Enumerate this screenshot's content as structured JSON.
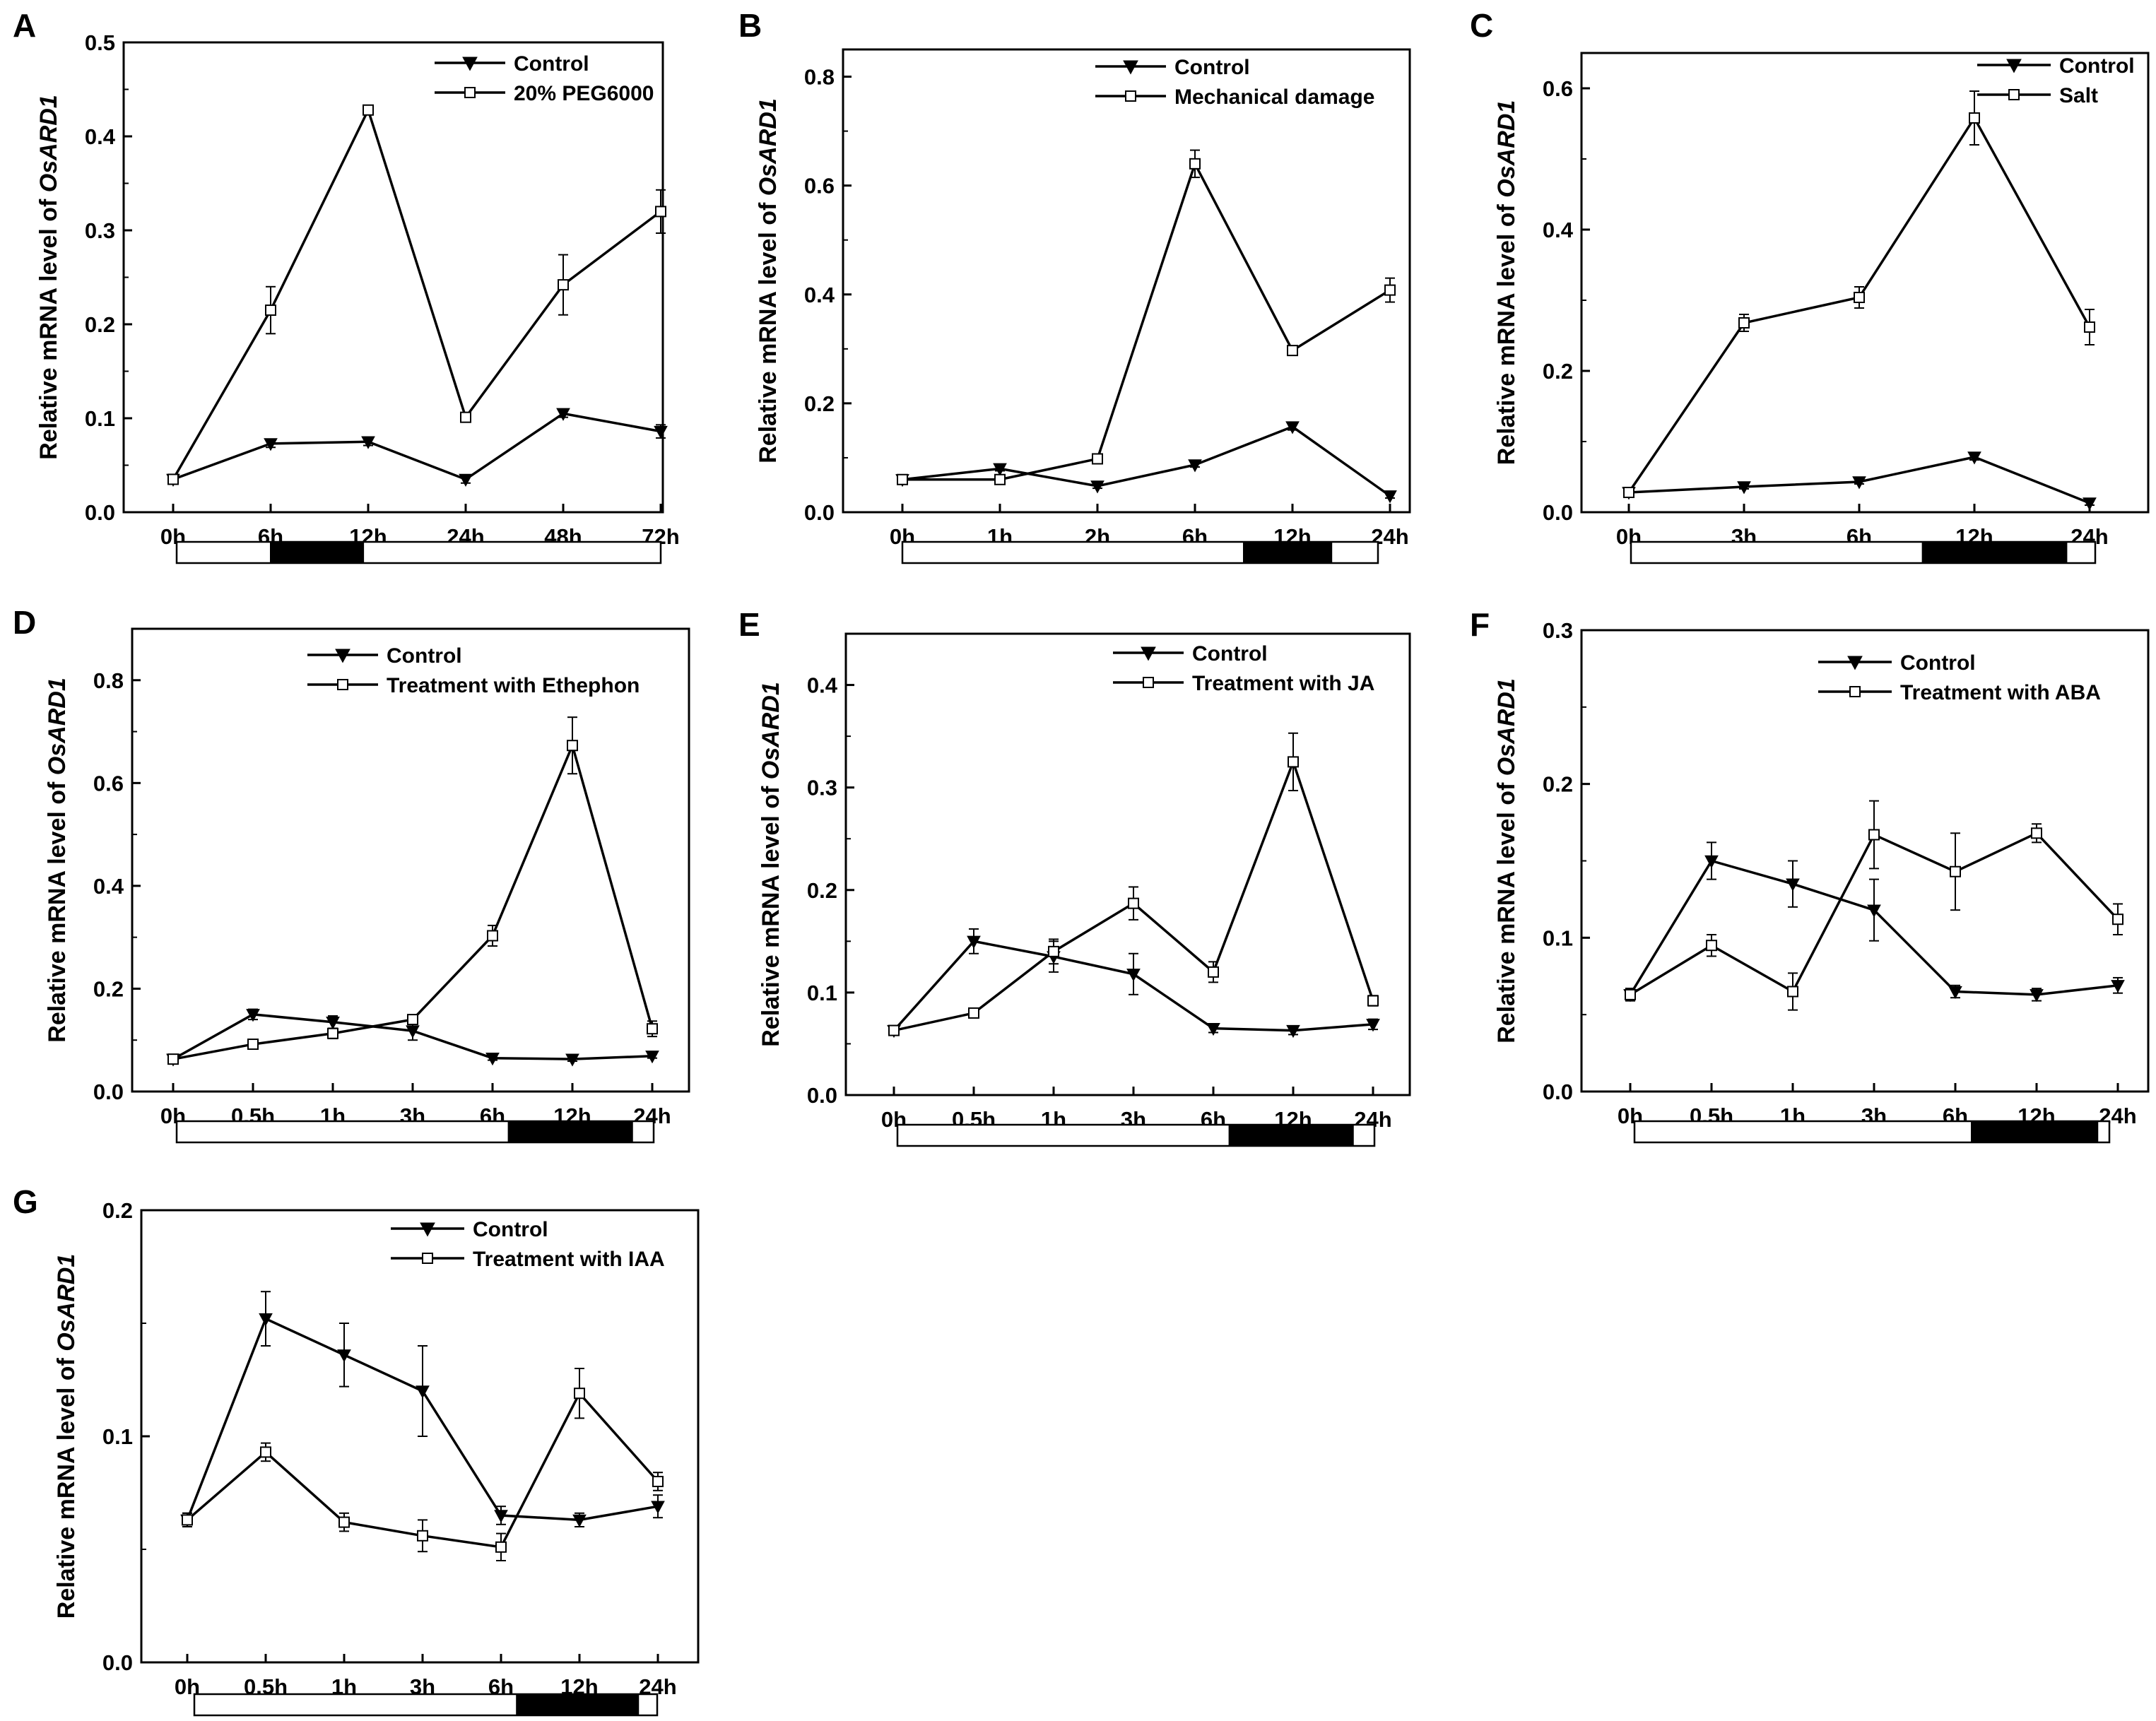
{
  "figure": {
    "y_label_prefix": "Relative mRNA level of ",
    "y_label_gene": "OsARD1"
  },
  "chart_data": [
    {
      "id": "A",
      "type": "line",
      "panel_label": "A",
      "categories": [
        "0h",
        "6h",
        "12h",
        "24h",
        "48h",
        "72h"
      ],
      "ylim": [
        0.0,
        0.5
      ],
      "yticks": [
        "0.0",
        "0.1",
        "0.2",
        "0.3",
        "0.4",
        "0.5"
      ],
      "ylabel": "Relative mRNA level of OsARD1",
      "xlabel": "",
      "legend_position": "top-right",
      "photoperiod_dark": [
        1.0,
        1.95
      ],
      "series": [
        {
          "name": "Control",
          "marker": "triangle-down",
          "values": [
            0.035,
            0.073,
            0.075,
            0.035,
            0.105,
            0.086
          ],
          "errors": [
            0.004,
            0.004,
            0.004,
            0.004,
            0.004,
            0.007
          ]
        },
        {
          "name": "20% PEG6000",
          "marker": "square-open",
          "values": [
            0.035,
            0.215,
            0.428,
            0.101,
            0.242,
            0.32
          ],
          "errors": [
            0.004,
            0.025,
            0.004,
            0.005,
            0.032,
            0.023
          ]
        }
      ]
    },
    {
      "id": "B",
      "type": "line",
      "panel_label": "B",
      "categories": [
        "0h",
        "1h",
        "2h",
        "6h",
        "12h",
        "24h"
      ],
      "ylim": [
        0.0,
        0.85
      ],
      "yticks": [
        "0.0",
        "0.2",
        "0.4",
        "0.6",
        "0.8"
      ],
      "ylabel": "Relative mRNA level of OsARD1",
      "xlabel": "",
      "legend_position": "top-right",
      "photoperiod_dark": [
        3.5,
        4.4
      ],
      "series": [
        {
          "name": "Control",
          "marker": "triangle-down",
          "values": [
            0.06,
            0.08,
            0.048,
            0.087,
            0.157,
            0.03
          ],
          "errors": [
            0.004,
            0.004,
            0.004,
            0.004,
            0.006,
            0.004
          ]
        },
        {
          "name": "Mechanical damage",
          "marker": "square-open",
          "values": [
            0.06,
            0.06,
            0.098,
            0.64,
            0.297,
            0.408
          ],
          "errors": [
            0.004,
            0.004,
            0.005,
            0.025,
            0.005,
            0.022
          ]
        }
      ]
    },
    {
      "id": "C",
      "type": "line",
      "panel_label": "C",
      "categories": [
        "0h",
        "3h",
        "6h",
        "12h",
        "24h"
      ],
      "ylim": [
        0.0,
        0.65
      ],
      "yticks": [
        "0.0",
        "0.2",
        "0.4",
        "0.6"
      ],
      "ylabel": "Relative mRNA level of OsARD1",
      "xlabel": "",
      "legend_position": "top-right",
      "photoperiod_dark": [
        2.55,
        3.8
      ],
      "series": [
        {
          "name": "Control",
          "marker": "triangle-down",
          "values": [
            0.028,
            0.036,
            0.043,
            0.078,
            0.013
          ],
          "errors": [
            0.003,
            0.003,
            0.003,
            0.004,
            0.003
          ]
        },
        {
          "name": "Salt",
          "marker": "square-open",
          "values": [
            0.028,
            0.268,
            0.304,
            0.558,
            0.262
          ],
          "errors": [
            0.003,
            0.012,
            0.015,
            0.038,
            0.025
          ]
        }
      ]
    },
    {
      "id": "D",
      "type": "line",
      "panel_label": "D",
      "categories": [
        "0h",
        "0.5h",
        "1h",
        "3h",
        "6h",
        "12h",
        "24h"
      ],
      "ylim": [
        0.0,
        0.9
      ],
      "yticks": [
        "0.0",
        "0.2",
        "0.4",
        "0.6",
        "0.8"
      ],
      "ylabel": "Relative mRNA level of OsARD1",
      "xlabel": "",
      "legend_position": "top-right",
      "photoperiod_dark": [
        4.2,
        5.75
      ],
      "series": [
        {
          "name": "Control",
          "marker": "triangle-down",
          "values": [
            0.063,
            0.15,
            0.135,
            0.118,
            0.065,
            0.063,
            0.069
          ],
          "errors": [
            0.004,
            0.01,
            0.012,
            0.018,
            0.004,
            0.004,
            0.004
          ]
        },
        {
          "name": "Treatment with Ethephon",
          "marker": "square-open",
          "values": [
            0.063,
            0.092,
            0.113,
            0.14,
            0.303,
            0.673,
            0.122
          ],
          "errors": [
            0.004,
            0.006,
            0.01,
            0.008,
            0.02,
            0.055,
            0.015
          ]
        }
      ]
    },
    {
      "id": "E",
      "type": "line",
      "panel_label": "E",
      "categories": [
        "0h",
        "0.5h",
        "1h",
        "3h",
        "6h",
        "12h",
        "24h"
      ],
      "ylim": [
        0.0,
        0.45
      ],
      "yticks": [
        "0.0",
        "0.1",
        "0.2",
        "0.3",
        "0.4"
      ],
      "ylabel": "Relative mRNA level of OsARD1",
      "xlabel": "",
      "legend_position": "top-right",
      "photoperiod_dark": [
        4.2,
        5.75
      ],
      "series": [
        {
          "name": "Control",
          "marker": "triangle-down",
          "values": [
            0.063,
            0.15,
            0.135,
            0.118,
            0.065,
            0.063,
            0.069
          ],
          "errors": [
            0.004,
            0.012,
            0.015,
            0.02,
            0.004,
            0.004,
            0.005
          ]
        },
        {
          "name": "Treatment with JA",
          "marker": "square-open",
          "values": [
            0.063,
            0.08,
            0.14,
            0.187,
            0.12,
            0.325,
            0.092
          ],
          "errors": [
            0.004,
            0.004,
            0.012,
            0.016,
            0.01,
            0.028,
            0.005
          ]
        }
      ]
    },
    {
      "id": "F",
      "type": "line",
      "panel_label": "F",
      "categories": [
        "0h",
        "0.5h",
        "1h",
        "3h",
        "6h",
        "12h",
        "24h"
      ],
      "ylim": [
        0.0,
        0.3
      ],
      "yticks": [
        "0.0",
        "0.1",
        "0.2",
        "0.3"
      ],
      "ylabel": "Relative mRNA level of OsARD1",
      "xlabel": "",
      "legend_position": "top-right",
      "photoperiod_dark": [
        4.2,
        5.75
      ],
      "series": [
        {
          "name": "Control",
          "marker": "triangle-down",
          "values": [
            0.063,
            0.15,
            0.135,
            0.118,
            0.065,
            0.063,
            0.069
          ],
          "errors": [
            0.004,
            0.012,
            0.015,
            0.02,
            0.004,
            0.004,
            0.005
          ]
        },
        {
          "name": "Treatment with ABA",
          "marker": "square-open",
          "values": [
            0.063,
            0.095,
            0.065,
            0.167,
            0.143,
            0.168,
            0.112
          ],
          "errors": [
            0.004,
            0.007,
            0.012,
            0.022,
            0.025,
            0.006,
            0.01
          ]
        }
      ]
    },
    {
      "id": "G",
      "type": "line",
      "panel_label": "G",
      "categories": [
        "0h",
        "0.5h",
        "1h",
        "3h",
        "6h",
        "12h",
        "24h"
      ],
      "ylim": [
        0.0,
        0.2
      ],
      "yticks": [
        "0.0",
        "0.1",
        "0.2"
      ],
      "ylabel": "Relative mRNA level of OsARD1",
      "xlabel": "",
      "legend_position": "top-right",
      "photoperiod_dark": [
        4.2,
        5.75
      ],
      "series": [
        {
          "name": "Control",
          "marker": "triangle-down",
          "values": [
            0.063,
            0.152,
            0.136,
            0.12,
            0.065,
            0.063,
            0.069
          ],
          "errors": [
            0.003,
            0.012,
            0.014,
            0.02,
            0.004,
            0.003,
            0.005
          ]
        },
        {
          "name": "Treatment with IAA",
          "marker": "square-open",
          "values": [
            0.063,
            0.093,
            0.062,
            0.056,
            0.051,
            0.119,
            0.08
          ],
          "errors": [
            0.003,
            0.004,
            0.004,
            0.007,
            0.006,
            0.011,
            0.004
          ]
        }
      ]
    }
  ]
}
